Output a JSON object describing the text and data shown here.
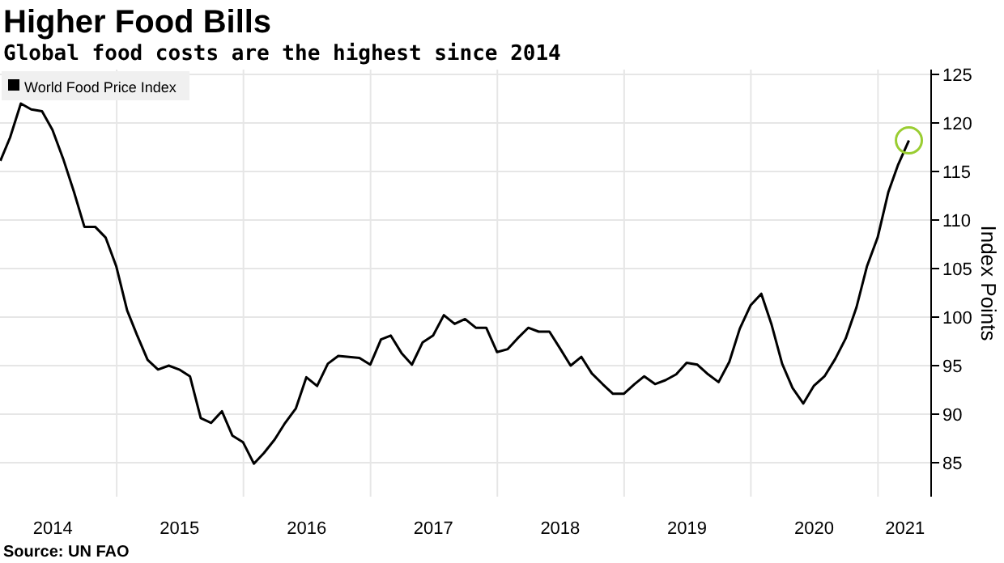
{
  "chart_data": {
    "type": "line",
    "title": "Higher Food Bills",
    "subtitle": "Global food costs are the highest since 2014",
    "ylabel": "Index Points",
    "annotations": [
      "Source: UN FAO"
    ],
    "x": [
      "2014-01-31",
      "2014-02-28",
      "2014-03-31",
      "2014-04-30",
      "2014-05-31",
      "2014-06-30",
      "2014-07-31",
      "2014-08-31",
      "2014-09-30",
      "2014-10-31",
      "2014-11-30",
      "2014-12-31",
      "2015-01-31",
      "2015-02-28",
      "2015-03-31",
      "2015-04-30",
      "2015-05-31",
      "2015-06-30",
      "2015-07-31",
      "2015-08-31",
      "2015-09-30",
      "2015-10-31",
      "2015-11-30",
      "2015-12-31",
      "2016-01-31",
      "2016-02-29",
      "2016-03-31",
      "2016-04-30",
      "2016-05-31",
      "2016-06-30",
      "2016-07-31",
      "2016-08-31",
      "2016-09-30",
      "2016-10-31",
      "2016-11-30",
      "2016-12-31",
      "2017-01-31",
      "2017-02-28",
      "2017-03-31",
      "2017-04-30",
      "2017-05-31",
      "2017-06-30",
      "2017-07-31",
      "2017-08-31",
      "2017-09-30",
      "2017-10-31",
      "2017-11-30",
      "2017-12-31",
      "2018-01-31",
      "2018-02-28",
      "2018-03-31",
      "2018-04-30",
      "2018-05-31",
      "2018-06-30",
      "2018-07-31",
      "2018-08-31",
      "2018-09-30",
      "2018-10-31",
      "2018-11-30",
      "2018-12-31",
      "2019-01-31",
      "2019-02-28",
      "2019-03-31",
      "2019-04-30",
      "2019-05-31",
      "2019-06-30",
      "2019-07-31",
      "2019-08-31",
      "2019-09-30",
      "2019-10-31",
      "2019-11-30",
      "2019-12-31",
      "2020-01-31",
      "2020-02-29",
      "2020-03-31",
      "2020-04-30",
      "2020-05-31",
      "2020-06-30",
      "2020-07-31",
      "2020-08-31",
      "2020-09-30",
      "2020-10-31",
      "2020-11-30",
      "2020-12-31",
      "2021-01-31",
      "2021-02-28",
      "2021-03-31"
    ],
    "series": [
      {
        "name": "World Food Price Index",
        "color": "#000000",
        "values": [
          116.1,
          118.5,
          122.0,
          121.4,
          121.2,
          119.3,
          116.3,
          112.9,
          109.3,
          109.3,
          108.2,
          105.2,
          100.7,
          98.2,
          95.6,
          94.6,
          95.0,
          94.6,
          93.9,
          89.6,
          89.1,
          90.3,
          87.8,
          87.1,
          84.9,
          86.0,
          87.4,
          89.1,
          90.6,
          93.8,
          92.9,
          95.2,
          96.0,
          95.9,
          95.8,
          95.1,
          97.7,
          98.1,
          96.3,
          95.1,
          97.4,
          98.1,
          100.2,
          99.3,
          99.8,
          98.9,
          98.9,
          96.4,
          96.7,
          97.8,
          98.9,
          98.5,
          98.5,
          96.8,
          95.0,
          95.9,
          94.2,
          93.1,
          92.1,
          92.1,
          93.1,
          93.9,
          93.1,
          93.5,
          94.1,
          95.3,
          95.1,
          94.1,
          93.3,
          95.4,
          98.8,
          101.2,
          102.4,
          99.3,
          95.2,
          92.7,
          91.1,
          92.9,
          93.9,
          95.7,
          97.8,
          101.0,
          105.2,
          108.2,
          112.9,
          115.7,
          118.2
        ]
      }
    ],
    "xlim": [
      "2014-01-30",
      "2021-06-03"
    ],
    "xticks": [
      {
        "value": "2014-07-01",
        "label": "2014"
      },
      {
        "value": "2015-01-01",
        "label": null
      },
      {
        "value": "2015-07-01",
        "label": "2015"
      },
      {
        "value": "2016-01-01",
        "label": null
      },
      {
        "value": "2016-07-01",
        "label": "2016"
      },
      {
        "value": "2017-01-01",
        "label": null
      },
      {
        "value": "2017-07-01",
        "label": "2017"
      },
      {
        "value": "2018-01-01",
        "label": null
      },
      {
        "value": "2018-07-01",
        "label": "2018"
      },
      {
        "value": "2019-01-01",
        "label": null
      },
      {
        "value": "2019-07-01",
        "label": "2019"
      },
      {
        "value": "2020-01-01",
        "label": null
      },
      {
        "value": "2020-07-01",
        "label": "2020"
      },
      {
        "value": "2021-01-01",
        "label": null
      },
      {
        "value": "2021-03-20",
        "label": "2021"
      }
    ],
    "ylim": [
      81.5,
      125.5
    ],
    "yticks": [
      85,
      90,
      95,
      100,
      105,
      110,
      115,
      120,
      125
    ],
    "grid": true,
    "legend": "top left",
    "line_style": "solid",
    "marker": "none"
  }
}
